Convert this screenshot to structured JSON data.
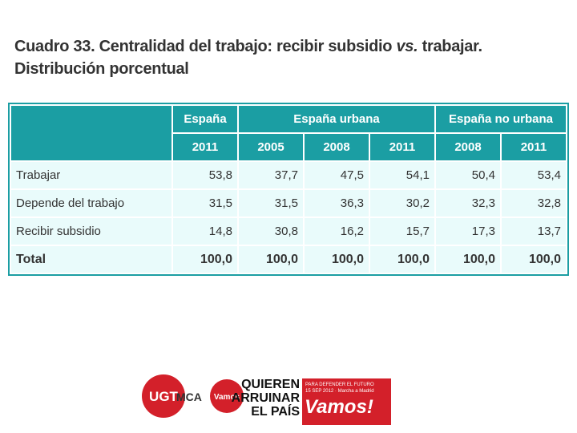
{
  "title": {
    "lead": "Cuadro 33. Centralidad del trabajo: recibir subsidio",
    "emphasis": "vs.",
    "tail": "trabajar. Distribución porcentual"
  },
  "table": {
    "groups": [
      "España",
      "España urbana",
      "España no urbana"
    ],
    "years": [
      "2011",
      "2005",
      "2008",
      "2011",
      "2008",
      "2011"
    ],
    "rows": [
      {
        "label": "Trabajar",
        "values": [
          "53,8",
          "37,7",
          "47,5",
          "54,1",
          "50,4",
          "53,4"
        ]
      },
      {
        "label": "Depende del trabajo",
        "values": [
          "31,5",
          "31,5",
          "36,3",
          "30,2",
          "32,3",
          "32,8"
        ]
      },
      {
        "label": "Recibir subsidio",
        "values": [
          "14,8",
          "30,8",
          "16,2",
          "15,7",
          "17,3",
          "13,7"
        ]
      },
      {
        "label": "Total",
        "values": [
          "100,0",
          "100,0",
          "100,0",
          "100,0",
          "100,0",
          "100,0"
        ]
      }
    ]
  },
  "footer": {
    "ugt": "UGT",
    "mca": "MCA",
    "vamos_small": "Vamos",
    "campaign": [
      "QUIEREN",
      "ARRUINAR",
      "EL PAÍS"
    ],
    "tagline": "PARA DEFENDER EL FUTURO",
    "date": "15 SEP 2012 · Marcha a Madrid",
    "vamos": "Vamos!"
  }
}
